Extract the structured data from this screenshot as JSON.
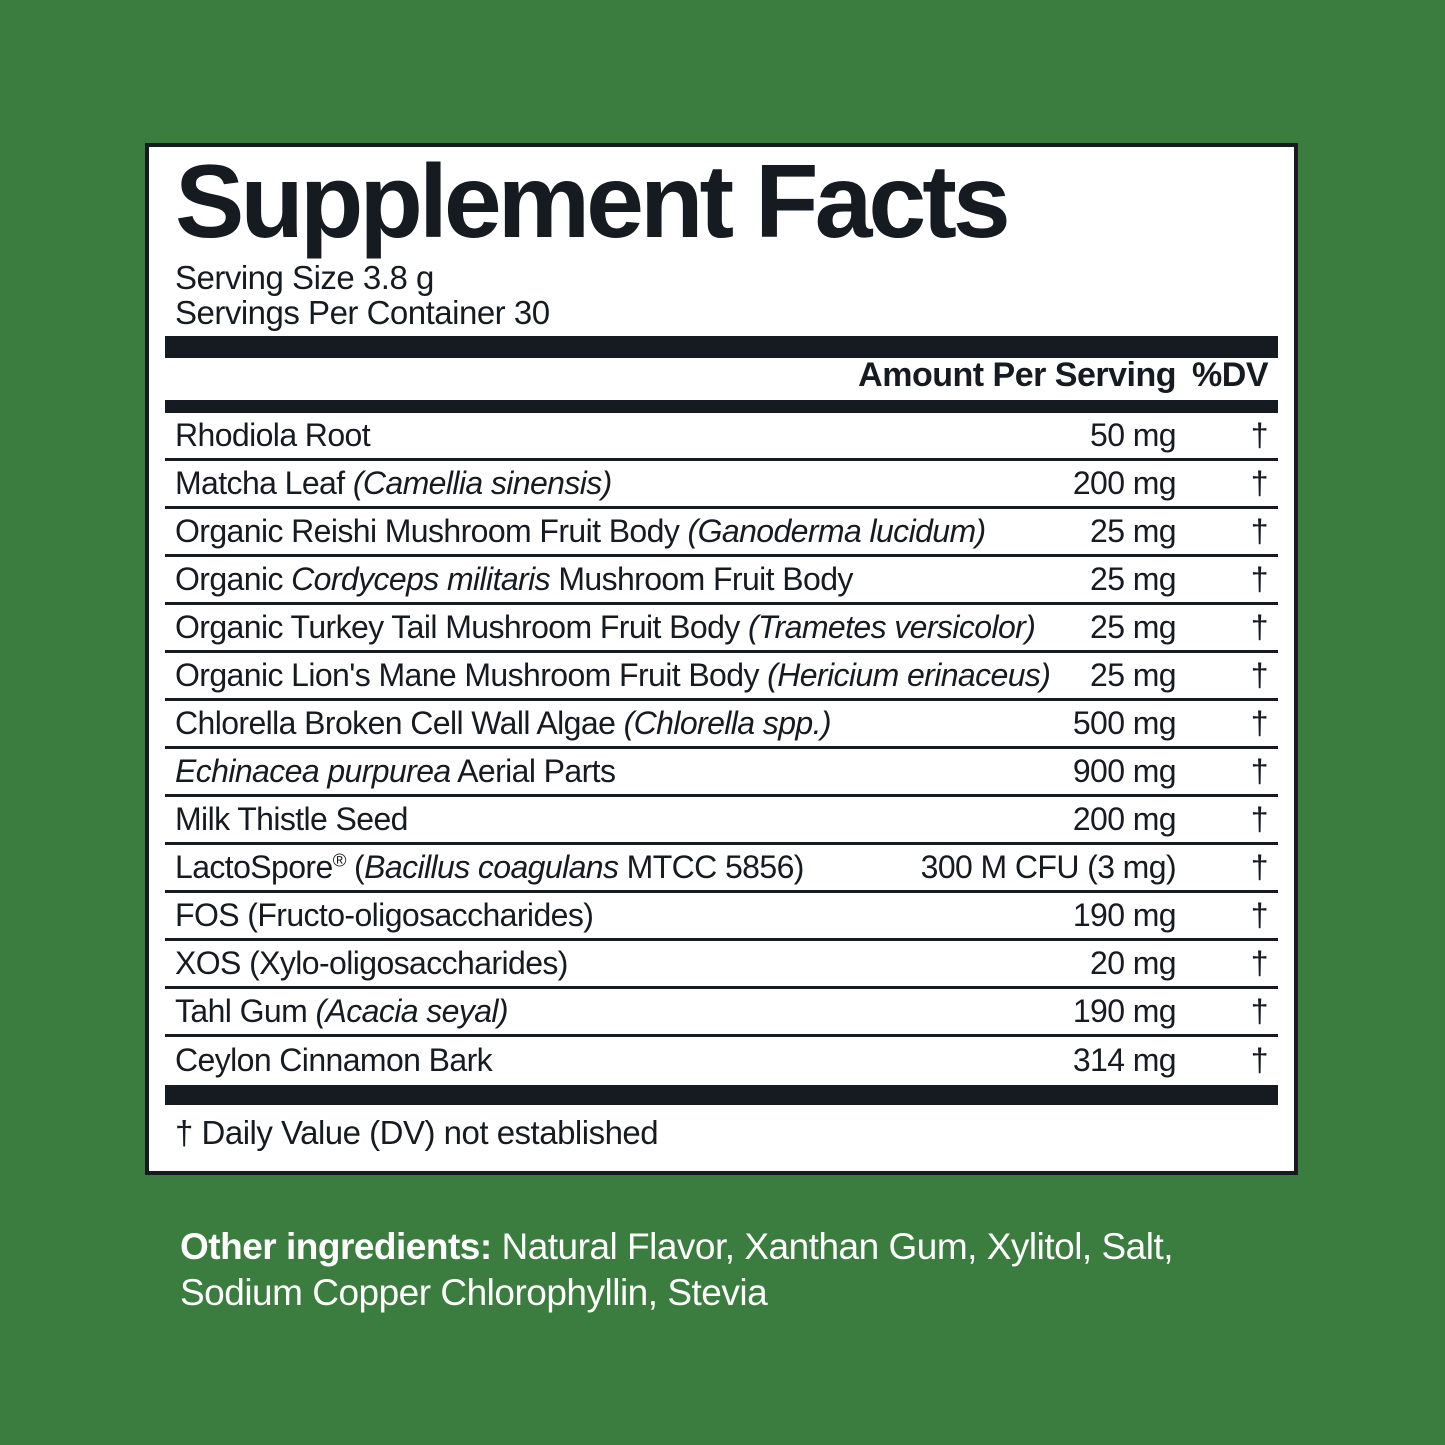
{
  "panel": {
    "title": "Supplement Facts",
    "serving_size": "Serving Size 3.8 g",
    "servings_per_container": "Servings Per Container 30",
    "footnote": "† Daily Value (DV) not established"
  },
  "table": {
    "amount_header": "Amount Per Serving",
    "dv_header": "%DV",
    "rows": [
      {
        "name_parts": [
          {
            "t": "Rhodiola Root"
          }
        ],
        "amount": "50 mg",
        "dv": "†"
      },
      {
        "name_parts": [
          {
            "t": "Matcha Leaf "
          },
          {
            "t": "(Camellia sinensis)",
            "i": true
          }
        ],
        "amount": "200 mg",
        "dv": "†"
      },
      {
        "name_parts": [
          {
            "t": "Organic Reishi Mushroom Fruit Body "
          },
          {
            "t": "(Ganoderma lucidum)",
            "i": true
          }
        ],
        "amount": "25 mg",
        "dv": "†"
      },
      {
        "name_parts": [
          {
            "t": "Organic "
          },
          {
            "t": "Cordyceps militaris",
            "i": true
          },
          {
            "t": " Mushroom Fruit Body"
          }
        ],
        "amount": "25 mg",
        "dv": "†"
      },
      {
        "name_parts": [
          {
            "t": "Organic Turkey Tail Mushroom Fruit Body "
          },
          {
            "t": "(Trametes versicolor)",
            "i": true
          }
        ],
        "amount": "25 mg",
        "dv": "†"
      },
      {
        "name_parts": [
          {
            "t": "Organic Lion's Mane Mushroom Fruit Body "
          },
          {
            "t": "(Hericium erinaceus)",
            "i": true
          }
        ],
        "amount": "25 mg",
        "dv": "†"
      },
      {
        "name_parts": [
          {
            "t": "Chlorella Broken Cell Wall Algae "
          },
          {
            "t": "(Chlorella spp.)",
            "i": true
          }
        ],
        "amount": "500 mg",
        "dv": "†"
      },
      {
        "name_parts": [
          {
            "t": "Echinacea purpurea",
            "i": true
          },
          {
            "t": " Aerial Parts"
          }
        ],
        "amount": "900 mg",
        "dv": "†"
      },
      {
        "name_parts": [
          {
            "t": "Milk Thistle Seed"
          }
        ],
        "amount": "200 mg",
        "dv": "†"
      },
      {
        "name_parts": [
          {
            "t": "LactoSpore"
          },
          {
            "t": "®",
            "sup": true
          },
          {
            "t": " ("
          },
          {
            "t": "Bacillus coagulans",
            "i": true
          },
          {
            "t": " MTCC 5856)"
          }
        ],
        "amount": "300 M CFU (3 mg)",
        "dv": "†"
      },
      {
        "name_parts": [
          {
            "t": "FOS (Fructo-oligosaccharides)"
          }
        ],
        "amount": "190 mg",
        "dv": "†"
      },
      {
        "name_parts": [
          {
            "t": "XOS (Xylo-oligosaccharides)"
          }
        ],
        "amount": "20 mg",
        "dv": "†"
      },
      {
        "name_parts": [
          {
            "t": "Tahl Gum "
          },
          {
            "t": "(Acacia seyal)",
            "i": true
          }
        ],
        "amount": "190 mg",
        "dv": "†"
      },
      {
        "name_parts": [
          {
            "t": "Ceylon Cinnamon Bark"
          }
        ],
        "amount": "314 mg",
        "dv": "†"
      }
    ]
  },
  "other_ingredients": {
    "label": "Other ingredients:",
    "text": " Natural Flavor, Xanthan Gum, Xylitol, Salt, Sodium Copper Chlorophyllin, Stevia"
  },
  "colors": {
    "background": "#3a7d3e",
    "ink": "#161b21",
    "panel": "#ffffff",
    "other_text": "#ffffff"
  }
}
